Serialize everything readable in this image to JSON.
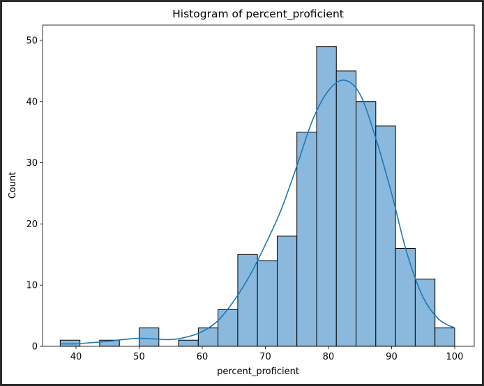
{
  "chart_data": {
    "type": "bar",
    "title": "Histogram of percent_proficient",
    "xlabel": "percent_proficient",
    "ylabel": "Count",
    "xlim": [
      34.7,
      103.1
    ],
    "ylim": [
      0,
      52.5
    ],
    "xticks": [
      40,
      50,
      60,
      70,
      80,
      90,
      100
    ],
    "yticks": [
      0,
      10,
      20,
      30,
      40,
      50
    ],
    "grid": false,
    "bar_color": "#8bb9dd",
    "bar_edge_color": "#000000",
    "kde_color": "#1f77b4",
    "bins": [
      {
        "x0": 37.5,
        "x1": 40.63,
        "count": 1
      },
      {
        "x0": 40.63,
        "x1": 43.75,
        "count": 0
      },
      {
        "x0": 43.75,
        "x1": 46.88,
        "count": 1
      },
      {
        "x0": 46.88,
        "x1": 50.0,
        "count": 0
      },
      {
        "x0": 50.0,
        "x1": 53.13,
        "count": 3
      },
      {
        "x0": 53.13,
        "x1": 56.25,
        "count": 0
      },
      {
        "x0": 56.25,
        "x1": 59.38,
        "count": 1
      },
      {
        "x0": 59.38,
        "x1": 62.5,
        "count": 3
      },
      {
        "x0": 62.5,
        "x1": 65.63,
        "count": 6
      },
      {
        "x0": 65.63,
        "x1": 68.75,
        "count": 15
      },
      {
        "x0": 68.75,
        "x1": 71.88,
        "count": 14
      },
      {
        "x0": 71.88,
        "x1": 75.0,
        "count": 18
      },
      {
        "x0": 75.0,
        "x1": 78.13,
        "count": 35
      },
      {
        "x0": 78.13,
        "x1": 81.25,
        "count": 49
      },
      {
        "x0": 81.25,
        "x1": 84.38,
        "count": 45
      },
      {
        "x0": 84.38,
        "x1": 87.5,
        "count": 40
      },
      {
        "x0": 87.5,
        "x1": 90.63,
        "count": 36
      },
      {
        "x0": 90.63,
        "x1": 93.75,
        "count": 16
      },
      {
        "x0": 93.75,
        "x1": 96.88,
        "count": 11
      },
      {
        "x0": 96.88,
        "x1": 100.0,
        "count": 3
      }
    ],
    "kde": {
      "x": [
        37.5,
        40,
        42.5,
        45,
        47.5,
        50,
        52.5,
        55,
        57.5,
        60,
        62.5,
        65,
        67.5,
        70,
        72.5,
        75,
        77.5,
        80,
        82.5,
        85,
        87.5,
        90,
        92.5,
        95,
        97.5,
        100
      ],
      "y": [
        0.4,
        0.4,
        0.6,
        0.8,
        1.1,
        1.3,
        1.2,
        1.1,
        1.5,
        2.4,
        4.2,
        7.4,
        11.5,
        16.6,
        22.3,
        29.5,
        37.0,
        41.8,
        43.5,
        41.2,
        34.0,
        25.0,
        15.0,
        8.0,
        4.4,
        3.0
      ]
    }
  }
}
